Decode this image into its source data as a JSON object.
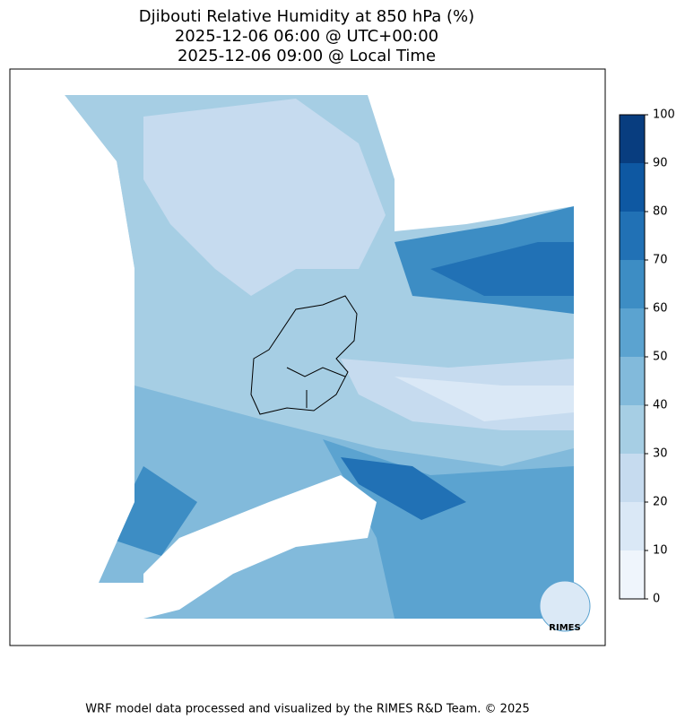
{
  "title": [
    "Djibouti Relative Humidity at 850 hPa (%)",
    "2025-12-06 06:00 @ UTC+00:00",
    "2025-12-06 09:00 @ Local Time"
  ],
  "colorbar": {
    "lim": [
      0,
      100
    ],
    "ticks": [
      0,
      10,
      20,
      30,
      40,
      50,
      60,
      70,
      80,
      90,
      100
    ],
    "colors": [
      "#eff5fc",
      "#dae8f6",
      "#c6dbef",
      "#a6cee4",
      "#82badb",
      "#5ba3d0",
      "#3d8dc4",
      "#2171b5",
      "#0e58a2",
      "#083d7f"
    ]
  },
  "logo": "RIMES",
  "footer": "WRF model data processed and visualized by the RIMES R&D Team. © 2025"
}
